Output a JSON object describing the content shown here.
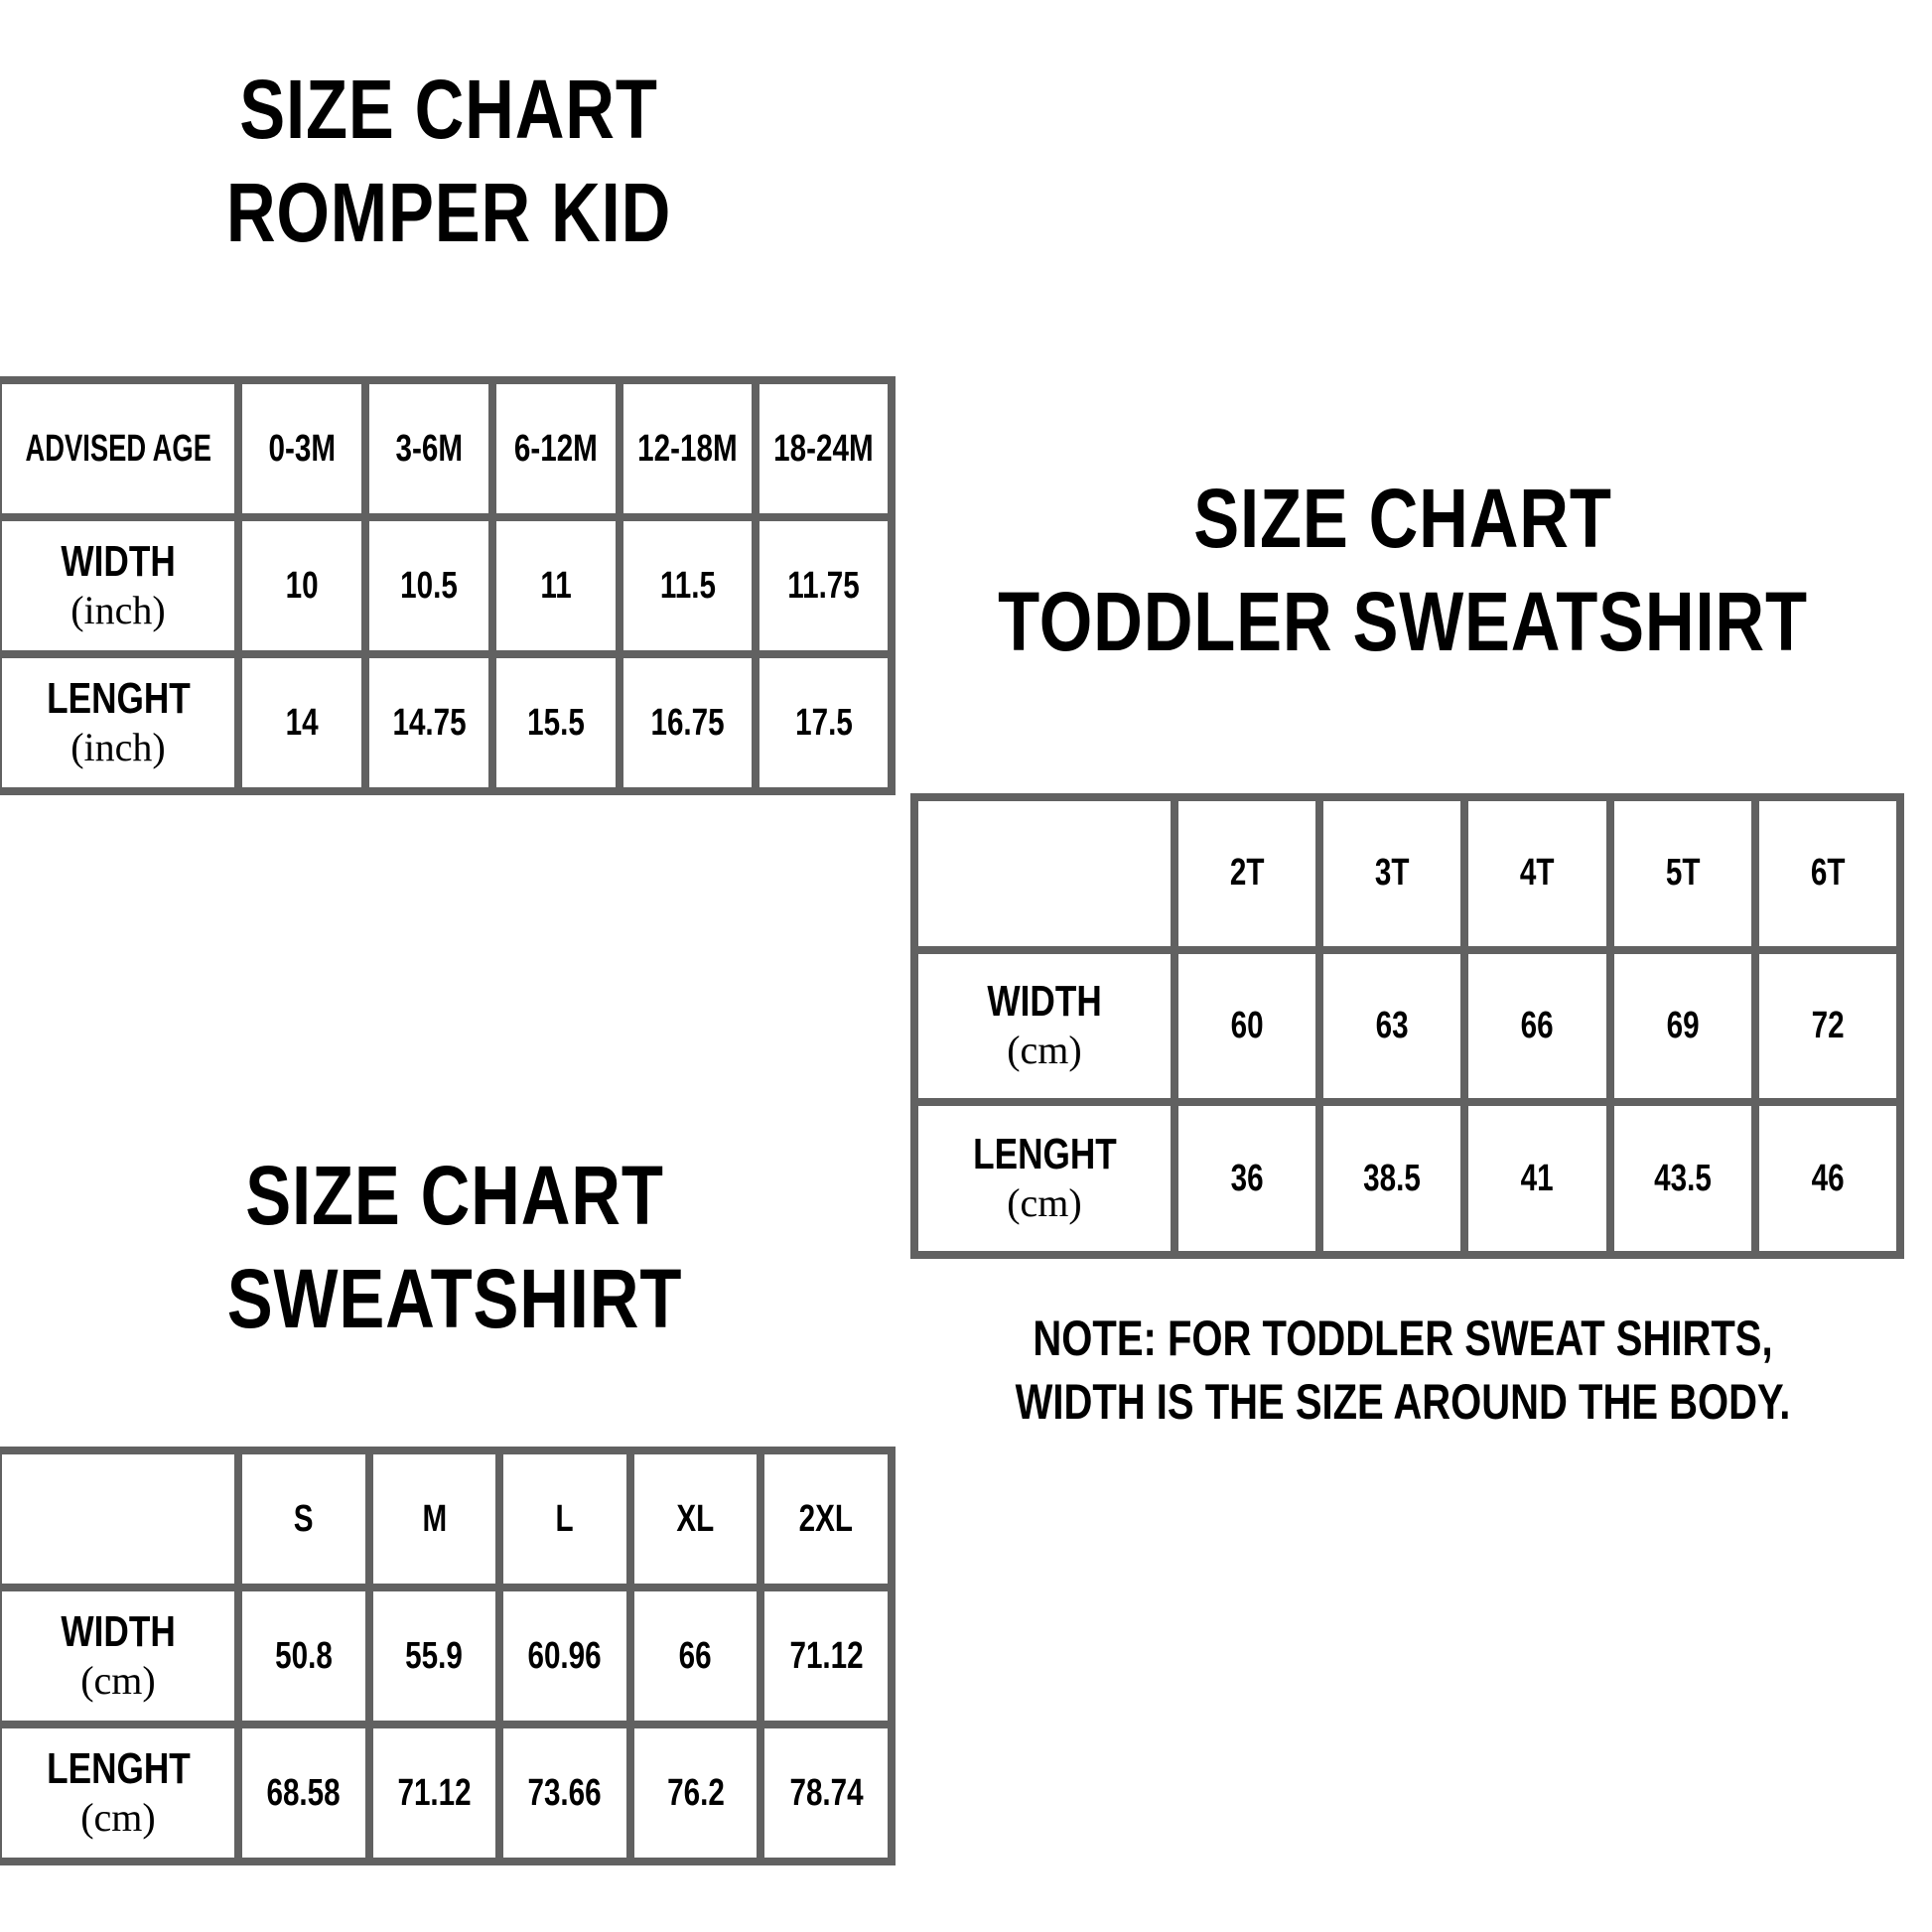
{
  "romper": {
    "title": [
      "SIZE CHART",
      "ROMPER KID"
    ],
    "header_label": "ADVISED AGE",
    "sizes": [
      "0-3M",
      "3-6M",
      "6-12M",
      "12-18M",
      "18-24M"
    ],
    "rows": [
      {
        "label": "WIDTH",
        "unit": "(inch)",
        "values": [
          "10",
          "10.5",
          "11",
          "11.5",
          "11.75"
        ]
      },
      {
        "label": "LENGHT",
        "unit": "(inch)",
        "values": [
          "14",
          "14.75",
          "15.5",
          "16.75",
          "17.5"
        ]
      }
    ]
  },
  "toddler": {
    "title": [
      "SIZE CHART",
      "TODDLER SWEATSHIRT"
    ],
    "header_label": "",
    "sizes": [
      "2T",
      "3T",
      "4T",
      "5T",
      "6T"
    ],
    "rows": [
      {
        "label": "WIDTH",
        "unit": "(cm)",
        "values": [
          "60",
          "63",
          "66",
          "69",
          "72"
        ]
      },
      {
        "label": "LENGHT",
        "unit": "(cm)",
        "values": [
          "36",
          "38.5",
          "41",
          "43.5",
          "46"
        ]
      }
    ],
    "note": [
      "NOTE: FOR TODDLER SWEAT SHIRTS,",
      "WIDTH IS THE SIZE AROUND THE BODY."
    ]
  },
  "sweatshirt": {
    "title": [
      "SIZE CHART",
      "SWEATSHIRT"
    ],
    "header_label": "",
    "sizes": [
      "S",
      "M",
      "L",
      "XL",
      "2XL"
    ],
    "rows": [
      {
        "label": "WIDTH",
        "unit": "(cm)",
        "values": [
          "50.8",
          "55.9",
          "60.96",
          "66",
          "71.12"
        ]
      },
      {
        "label": "LENGHT",
        "unit": "(cm)",
        "values": [
          "68.58",
          "71.12",
          "73.66",
          "76.2",
          "78.74"
        ]
      }
    ]
  },
  "colors": {
    "grid": "#616161",
    "text": "#000000",
    "background": "#ffffff"
  }
}
